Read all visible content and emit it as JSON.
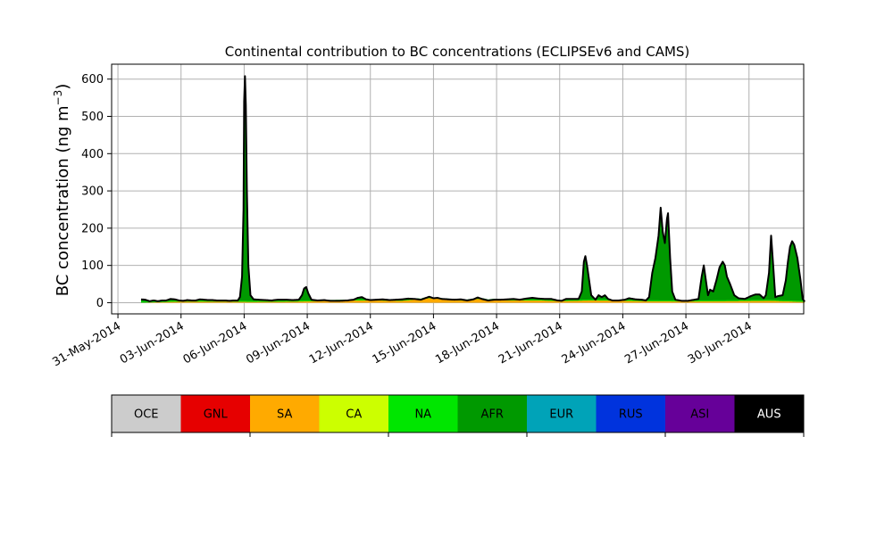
{
  "chart_data": {
    "type": "area",
    "title": "Continental contribution to BC concentrations (ECLIPSEv6 and CAMS)",
    "xlabel": "",
    "ylabel_main": "BC concentration (ng m",
    "ylabel_sup": "−3",
    "ylabel_close": ")",
    "x_tick_labels": [
      "31-May-2014",
      "03-Jun-2014",
      "06-Jun-2014",
      "09-Jun-2014",
      "12-Jun-2014",
      "15-Jun-2014",
      "18-Jun-2014",
      "21-Jun-2014",
      "24-Jun-2014",
      "27-Jun-2014",
      "30-Jun-2014"
    ],
    "x_tick_days": [
      0,
      3,
      6,
      9,
      12,
      15,
      18,
      21,
      24,
      27,
      30
    ],
    "x_range_days": [
      -0.3,
      32.6
    ],
    "x_origin_label": "31-May-2014",
    "y_ticks": [
      0,
      100,
      200,
      300,
      400,
      500,
      600
    ],
    "ylim": [
      -30,
      640
    ],
    "grid": true,
    "stack_order": [
      "SA",
      "NA",
      "AFR"
    ],
    "series_total_knots": [
      [
        1.1,
        9
      ],
      [
        1.3,
        8
      ],
      [
        1.5,
        4
      ],
      [
        1.7,
        6
      ],
      [
        1.9,
        4
      ],
      [
        2.1,
        6
      ],
      [
        2.3,
        6
      ],
      [
        2.5,
        10
      ],
      [
        2.7,
        9
      ],
      [
        2.9,
        6
      ],
      [
        3.1,
        5
      ],
      [
        3.3,
        7
      ],
      [
        3.5,
        6
      ],
      [
        3.7,
        6
      ],
      [
        3.9,
        9
      ],
      [
        4.1,
        8
      ],
      [
        4.3,
        7
      ],
      [
        4.5,
        7
      ],
      [
        4.7,
        6
      ],
      [
        4.9,
        6
      ],
      [
        5.1,
        6
      ],
      [
        5.3,
        5
      ],
      [
        5.5,
        6
      ],
      [
        5.7,
        6
      ],
      [
        5.8,
        15
      ],
      [
        5.9,
        70
      ],
      [
        5.97,
        250
      ],
      [
        6.0,
        540
      ],
      [
        6.04,
        608
      ],
      [
        6.08,
        530
      ],
      [
        6.13,
        300
      ],
      [
        6.2,
        100
      ],
      [
        6.3,
        20
      ],
      [
        6.45,
        9
      ],
      [
        6.7,
        8
      ],
      [
        7.0,
        7
      ],
      [
        7.3,
        6
      ],
      [
        7.6,
        8
      ],
      [
        8.0,
        8
      ],
      [
        8.3,
        7
      ],
      [
        8.6,
        8
      ],
      [
        8.75,
        20
      ],
      [
        8.85,
        38
      ],
      [
        8.95,
        42
      ],
      [
        9.05,
        25
      ],
      [
        9.2,
        8
      ],
      [
        9.5,
        6
      ],
      [
        9.8,
        7
      ],
      [
        10.1,
        5
      ],
      [
        10.5,
        5
      ],
      [
        10.9,
        6
      ],
      [
        11.2,
        8
      ],
      [
        11.4,
        13
      ],
      [
        11.6,
        15
      ],
      [
        11.8,
        9
      ],
      [
        12.0,
        7
      ],
      [
        12.3,
        8
      ],
      [
        12.6,
        9
      ],
      [
        12.9,
        7
      ],
      [
        13.2,
        8
      ],
      [
        13.5,
        9
      ],
      [
        13.8,
        11
      ],
      [
        14.1,
        10
      ],
      [
        14.4,
        8
      ],
      [
        14.6,
        12
      ],
      [
        14.8,
        16
      ],
      [
        15.0,
        12
      ],
      [
        15.2,
        13
      ],
      [
        15.4,
        10
      ],
      [
        15.7,
        9
      ],
      [
        16.0,
        8
      ],
      [
        16.3,
        9
      ],
      [
        16.6,
        6
      ],
      [
        16.9,
        9
      ],
      [
        17.1,
        14
      ],
      [
        17.3,
        10
      ],
      [
        17.6,
        6
      ],
      [
        17.9,
        8
      ],
      [
        18.2,
        8
      ],
      [
        18.5,
        9
      ],
      [
        18.8,
        10
      ],
      [
        19.1,
        8
      ],
      [
        19.4,
        11
      ],
      [
        19.7,
        13
      ],
      [
        20.0,
        11
      ],
      [
        20.3,
        10
      ],
      [
        20.6,
        10
      ],
      [
        20.9,
        6
      ],
      [
        21.1,
        5
      ],
      [
        21.3,
        10
      ],
      [
        21.6,
        10
      ],
      [
        21.9,
        10
      ],
      [
        22.05,
        30
      ],
      [
        22.15,
        110
      ],
      [
        22.22,
        125
      ],
      [
        22.3,
        100
      ],
      [
        22.4,
        60
      ],
      [
        22.5,
        20
      ],
      [
        22.7,
        8
      ],
      [
        22.85,
        20
      ],
      [
        23.0,
        15
      ],
      [
        23.15,
        20
      ],
      [
        23.3,
        10
      ],
      [
        23.5,
        6
      ],
      [
        23.8,
        6
      ],
      [
        24.1,
        8
      ],
      [
        24.3,
        12
      ],
      [
        24.6,
        9
      ],
      [
        24.9,
        8
      ],
      [
        25.1,
        6
      ],
      [
        25.25,
        15
      ],
      [
        25.4,
        80
      ],
      [
        25.55,
        120
      ],
      [
        25.7,
        180
      ],
      [
        25.8,
        255
      ],
      [
        25.9,
        190
      ],
      [
        26.0,
        160
      ],
      [
        26.1,
        225
      ],
      [
        26.15,
        240
      ],
      [
        26.25,
        120
      ],
      [
        26.35,
        30
      ],
      [
        26.5,
        8
      ],
      [
        26.8,
        5
      ],
      [
        27.1,
        5
      ],
      [
        27.4,
        8
      ],
      [
        27.6,
        10
      ],
      [
        27.75,
        70
      ],
      [
        27.85,
        100
      ],
      [
        27.95,
        60
      ],
      [
        28.05,
        20
      ],
      [
        28.15,
        35
      ],
      [
        28.3,
        30
      ],
      [
        28.45,
        60
      ],
      [
        28.6,
        95
      ],
      [
        28.75,
        110
      ],
      [
        28.85,
        100
      ],
      [
        28.95,
        70
      ],
      [
        29.1,
        50
      ],
      [
        29.3,
        20
      ],
      [
        29.5,
        12
      ],
      [
        29.8,
        10
      ],
      [
        30.1,
        18
      ],
      [
        30.3,
        22
      ],
      [
        30.5,
        22
      ],
      [
        30.7,
        12
      ],
      [
        30.8,
        20
      ],
      [
        30.95,
        80
      ],
      [
        31.05,
        180
      ],
      [
        31.15,
        100
      ],
      [
        31.25,
        15
      ],
      [
        31.4,
        18
      ],
      [
        31.6,
        20
      ],
      [
        31.75,
        60
      ],
      [
        31.85,
        110
      ],
      [
        31.95,
        150
      ],
      [
        32.05,
        165
      ],
      [
        32.15,
        155
      ],
      [
        32.3,
        120
      ],
      [
        32.45,
        60
      ],
      [
        32.55,
        10
      ],
      [
        32.65,
        3
      ]
    ],
    "series_sa_knots": [
      [
        1.1,
        0
      ],
      [
        3.0,
        3
      ],
      [
        5.0,
        3
      ],
      [
        6.3,
        2
      ],
      [
        8.5,
        3
      ],
      [
        11.5,
        6
      ],
      [
        13.5,
        5
      ],
      [
        14.8,
        12
      ],
      [
        16.5,
        5
      ],
      [
        17.1,
        10
      ],
      [
        18.5,
        6
      ],
      [
        20.0,
        6
      ],
      [
        21.0,
        4
      ],
      [
        22.5,
        6
      ],
      [
        24.0,
        5
      ],
      [
        25.0,
        4
      ],
      [
        27.0,
        3
      ],
      [
        29.0,
        4
      ],
      [
        31.0,
        5
      ],
      [
        32.65,
        2
      ]
    ],
    "colorbar": {
      "ticks_at_boundaries": [
        0,
        2,
        4,
        6,
        8,
        10
      ],
      "tick_labels_visible": false,
      "categories": [
        {
          "label": "OCE",
          "color": "#cccccc",
          "text_color": "#000000"
        },
        {
          "label": "GNL",
          "color": "#e60000",
          "text_color": "#000000"
        },
        {
          "label": "SA",
          "color": "#ffaa00",
          "text_color": "#000000"
        },
        {
          "label": "CA",
          "color": "#ccff00",
          "text_color": "#000000"
        },
        {
          "label": "NA",
          "color": "#00e600",
          "text_color": "#000000"
        },
        {
          "label": "AFR",
          "color": "#009900",
          "text_color": "#000000"
        },
        {
          "label": "EUR",
          "color": "#00a3b8",
          "text_color": "#000000"
        },
        {
          "label": "RUS",
          "color": "#0033dd",
          "text_color": "#000000"
        },
        {
          "label": "ASI",
          "color": "#660099",
          "text_color": "#000000"
        },
        {
          "label": "AUS",
          "color": "#000000",
          "text_color": "#ffffff"
        }
      ]
    },
    "colors": {
      "total_line": "#000000",
      "afr_fill": "#009900",
      "na_line": "#00e600",
      "sa_fill": "#ffaa00",
      "grid": "#b0b0b0"
    }
  }
}
